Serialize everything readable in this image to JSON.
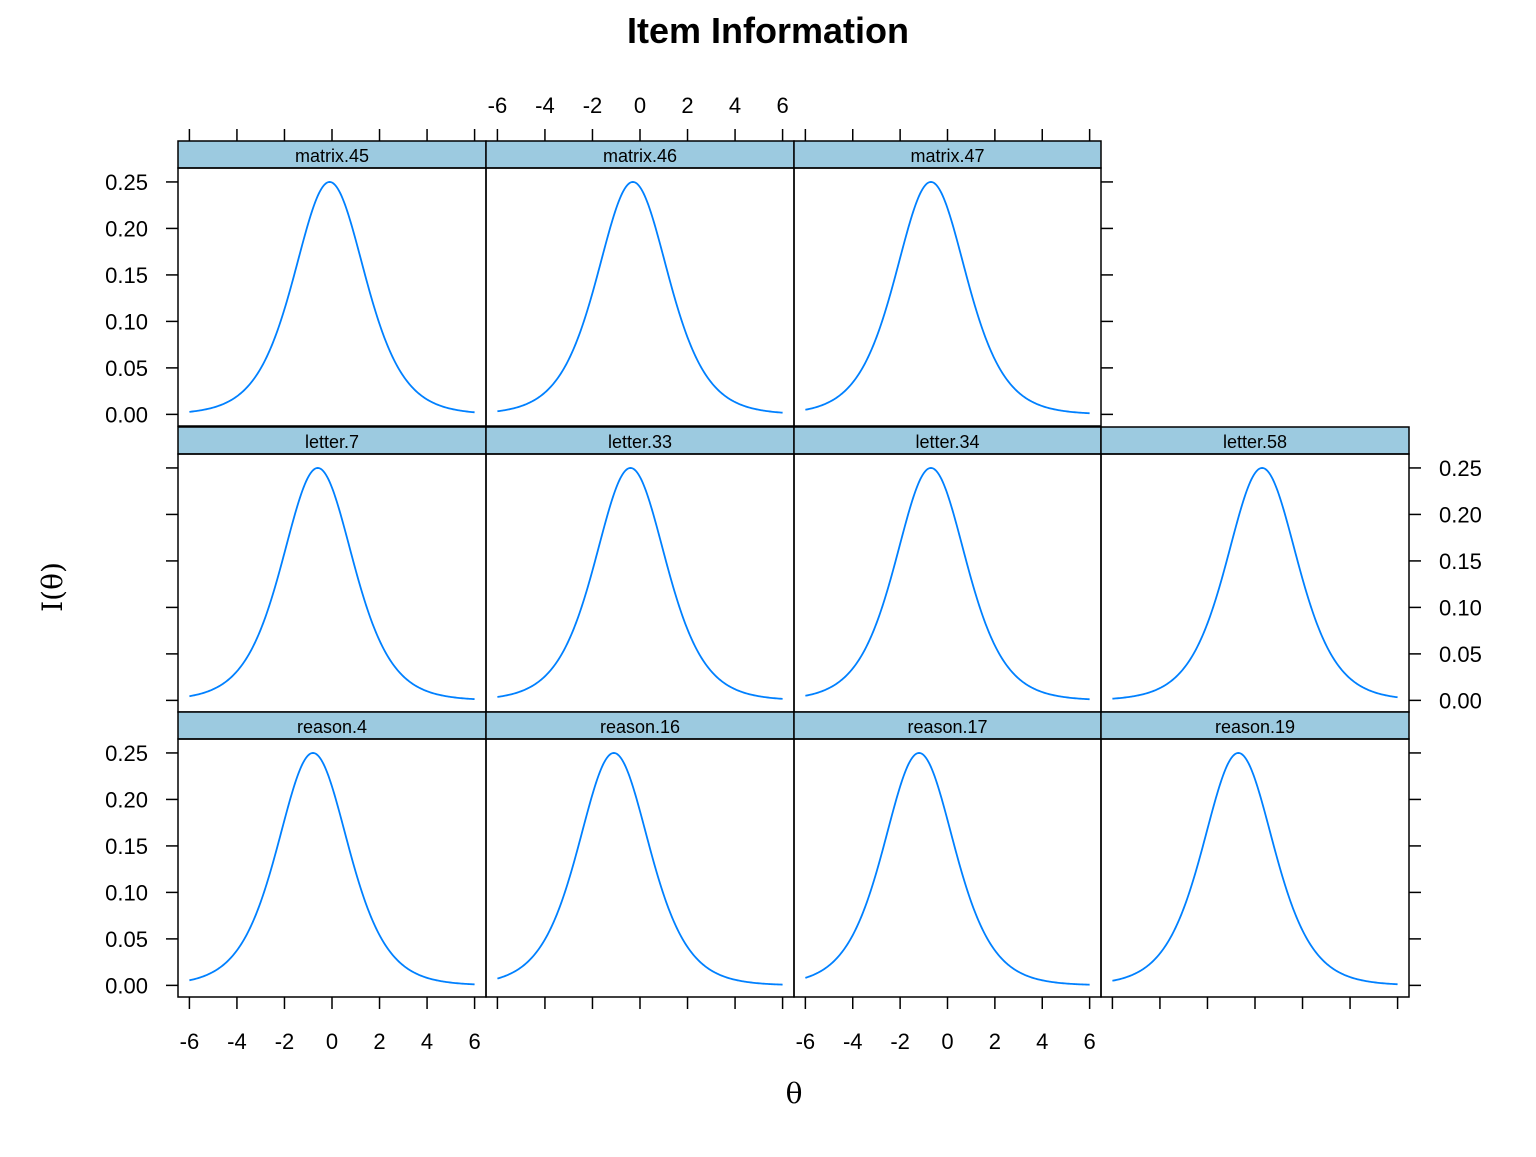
{
  "title": "Item Information",
  "xlabel": "θ",
  "ylabel": "I(θ)",
  "colors": {
    "curve": "#0080ff",
    "strip": "#9ccae0",
    "frame": "#000000"
  },
  "x_ticks": [
    "-6",
    "-4",
    "-2",
    "0",
    "2",
    "4",
    "6"
  ],
  "y_ticks": [
    "0.00",
    "0.05",
    "0.10",
    "0.15",
    "0.20",
    "0.25"
  ],
  "chart_data": {
    "type": "line",
    "layout": "trellis 4 columns x 3 rows",
    "xlim": [
      -6,
      6
    ],
    "ylim": [
      0,
      0.25
    ],
    "x_tick_values": [
      -6,
      -4,
      -2,
      0,
      2,
      4,
      6
    ],
    "y_tick_values": [
      0,
      0.05,
      0.1,
      0.15,
      0.2,
      0.25
    ],
    "panels": [
      {
        "name": "matrix.45",
        "row": 0,
        "col": 0,
        "peak_theta": -0.1,
        "peak_info": 0.25,
        "slope": 1
      },
      {
        "name": "matrix.46",
        "row": 0,
        "col": 1,
        "peak_theta": -0.3,
        "peak_info": 0.25,
        "slope": 1
      },
      {
        "name": "matrix.47",
        "row": 0,
        "col": 2,
        "peak_theta": -0.7,
        "peak_info": 0.25,
        "slope": 1
      },
      {
        "name": "letter.7",
        "row": 1,
        "col": 0,
        "peak_theta": -0.6,
        "peak_info": 0.25,
        "slope": 1
      },
      {
        "name": "letter.33",
        "row": 1,
        "col": 1,
        "peak_theta": -0.4,
        "peak_info": 0.25,
        "slope": 1
      },
      {
        "name": "letter.34",
        "row": 1,
        "col": 2,
        "peak_theta": -0.7,
        "peak_info": 0.25,
        "slope": 1
      },
      {
        "name": "letter.58",
        "row": 1,
        "col": 3,
        "peak_theta": 0.3,
        "peak_info": 0.25,
        "slope": 1
      },
      {
        "name": "reason.4",
        "row": 2,
        "col": 0,
        "peak_theta": -0.8,
        "peak_info": 0.25,
        "slope": 1
      },
      {
        "name": "reason.16",
        "row": 2,
        "col": 1,
        "peak_theta": -1.1,
        "peak_info": 0.25,
        "slope": 1
      },
      {
        "name": "reason.17",
        "row": 2,
        "col": 2,
        "peak_theta": -1.2,
        "peak_info": 0.25,
        "slope": 1
      },
      {
        "name": "reason.19",
        "row": 2,
        "col": 3,
        "peak_theta": -0.7,
        "peak_info": 0.25,
        "slope": 1
      }
    ]
  }
}
